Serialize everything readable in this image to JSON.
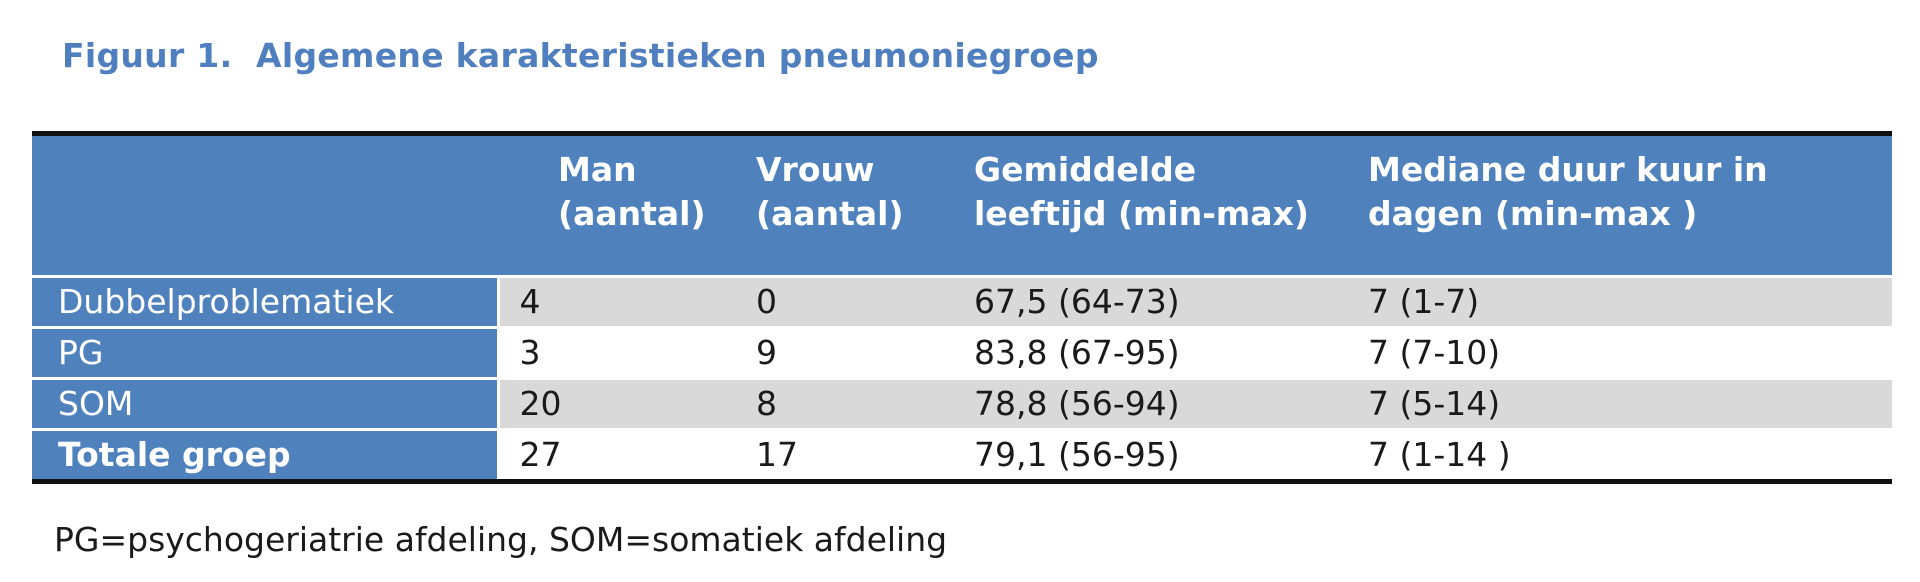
{
  "title": "Figuur 1.  Algemene karakteristieken pneumoniegroep",
  "table": {
    "headers": [
      "",
      "Man (aantal)",
      "Vrouw (aantal)",
      "Gemiddelde leeftijd (min-max)",
      "Mediane duur kuur in dagen (min-max )"
    ],
    "rows": [
      {
        "label": "Dubbelproblematiek",
        "man": "4",
        "vrouw": "0",
        "leeftijd": "67,5 (64-73)",
        "duur": "7 (1-7)"
      },
      {
        "label": "PG",
        "man": "3",
        "vrouw": "9",
        "leeftijd": "83,8 (67-95)",
        "duur": "7 (7-10)"
      },
      {
        "label": "SOM",
        "man": "20",
        "vrouw": "8",
        "leeftijd": "78,8 (56-94)",
        "duur": "7 (5-14)"
      },
      {
        "label": "Totale groep",
        "man": "27",
        "vrouw": "17",
        "leeftijd": "79,1 (56-95)",
        "duur": "7 (1-14 )"
      }
    ]
  },
  "footnote": "PG=psychogeriatrie afdeling, SOM=somatiek afdeling",
  "colors": {
    "title": "#4f7fbe",
    "header_bg": "#4f81bd",
    "row_shade": "#d9d9d9",
    "rule": "#111111"
  }
}
